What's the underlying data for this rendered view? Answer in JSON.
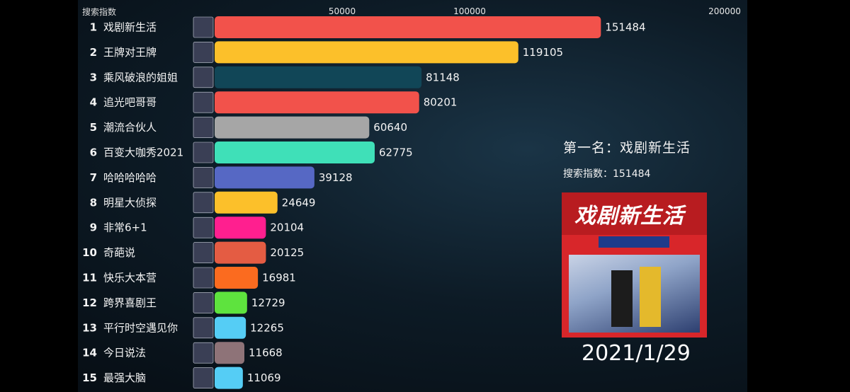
{
  "chart_data": {
    "type": "bar",
    "orientation": "horizontal",
    "axis_title": "搜索指数",
    "xticks": [
      50000,
      100000,
      200000
    ],
    "xlim": [
      0,
      200000
    ],
    "grid": false,
    "categories": [
      "戏剧新生活",
      "王牌对王牌",
      "乘风破浪的姐姐",
      "追光吧哥哥",
      "潮流合伙人",
      "百变大咖秀2021",
      "哈哈哈哈哈",
      "明星大侦探",
      "非常6+1",
      "奇葩说",
      "快乐大本营",
      "跨界喜剧王",
      "平行时空遇见你",
      "今日说法",
      "最强大脑"
    ],
    "ranks": [
      "1",
      "2",
      "3",
      "4",
      "5",
      "6",
      "7",
      "8",
      "9",
      "10",
      "11",
      "12",
      "13",
      "14",
      "15"
    ],
    "values": [
      151484,
      119105,
      81148,
      80201,
      60640,
      62775,
      39128,
      24649,
      20104,
      20125,
      16981,
      12729,
      12265,
      11668,
      11069
    ],
    "value_labels": [
      "151484",
      "119105",
      "81148",
      "80201",
      "60640",
      "62775",
      "39128",
      "24649",
      "20104",
      "20125",
      "16981",
      "12729",
      "12265",
      "11668",
      "11069"
    ],
    "colors": [
      "#f2524b",
      "#fcc02a",
      "#114657",
      "#f2524b",
      "#a6a6a6",
      "#3fe0b8",
      "#5668c4",
      "#fcc02a",
      "#ff1f8f",
      "#e45c43",
      "#fb6b1f",
      "#5ee33e",
      "#55cdf5",
      "#8e7378",
      "#55cdf5"
    ]
  },
  "side_panel": {
    "title": "第一名：戏剧新生活",
    "subtitle": "搜索指数：151484",
    "poster_title": "戏剧新生活",
    "date": "2021/1/29"
  }
}
